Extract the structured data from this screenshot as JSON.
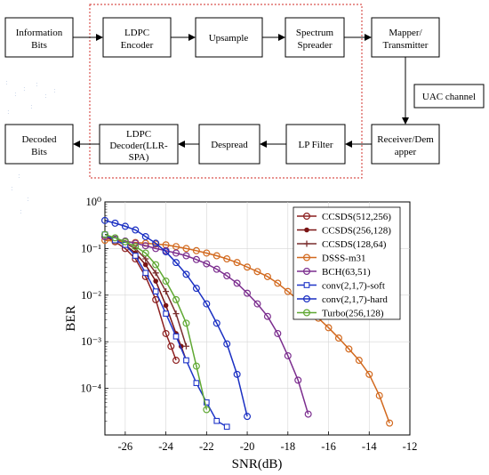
{
  "diagram": {
    "blocks": {
      "info": [
        "Information",
        "Bits"
      ],
      "ldpc_enc": [
        "LDPC",
        "Encoder"
      ],
      "upsample": [
        "Upsample"
      ],
      "spreader": [
        "Spectrum",
        "Spreader"
      ],
      "mapper": [
        "Mapper/",
        "Transmitter"
      ],
      "channel": [
        "UAC channel"
      ],
      "receiver": [
        "Receiver/Dem",
        "apper"
      ],
      "lpfilter": [
        "LP Filter"
      ],
      "despread": [
        "Despread"
      ],
      "ldpc_dec": [
        "LDPC",
        "Decoder(LLR-",
        "SPA)"
      ],
      "decoded": [
        "Decoded",
        "Bits"
      ]
    }
  },
  "chart_data": {
    "type": "line",
    "xlabel": "SNR(dB)",
    "ylabel": "BER",
    "xlim": [
      -27,
      -12
    ],
    "ylim": [
      1e-05,
      1
    ],
    "y_scale": "log",
    "x_ticks": [
      -26,
      -24,
      -22,
      -20,
      -18,
      -16,
      -14,
      -12
    ],
    "y_ticks": [
      1,
      0.1,
      0.01,
      0.001,
      0.0001
    ],
    "legend_position": "top-right",
    "grid": true,
    "series": [
      {
        "name": "CCSDS(512,256)",
        "color": "#8c1f1f",
        "marker": "circle",
        "x": [
          -27,
          -26.5,
          -26,
          -25.5,
          -25,
          -24.5,
          -24,
          -23.75,
          -23.5
        ],
        "y": [
          0.18,
          0.14,
          0.1,
          0.06,
          0.025,
          0.008,
          0.0015,
          0.0008,
          0.0004
        ]
      },
      {
        "name": "CCSDS(256,128)",
        "color": "#7a1414",
        "marker": "dot",
        "x": [
          -27,
          -26.5,
          -26,
          -25.5,
          -25,
          -24.5,
          -24,
          -23.5,
          -23.25,
          -23
        ],
        "y": [
          0.19,
          0.15,
          0.12,
          0.08,
          0.045,
          0.02,
          0.006,
          0.0015,
          0.0008,
          0.0004
        ]
      },
      {
        "name": "CCSDS(128,64)",
        "color": "#7a2e2e",
        "marker": "plus",
        "x": [
          -27,
          -26.5,
          -26,
          -25.5,
          -25,
          -24.5,
          -24,
          -23.5,
          -23
        ],
        "y": [
          0.2,
          0.16,
          0.13,
          0.1,
          0.06,
          0.03,
          0.012,
          0.004,
          0.0008
        ]
      },
      {
        "name": "DSSS-m31",
        "color": "#d2691e",
        "marker": "circle",
        "x": [
          -27,
          -26.5,
          -26,
          -25.5,
          -25,
          -24.5,
          -24,
          -23.5,
          -23,
          -22.5,
          -22,
          -21.5,
          -21,
          -20.5,
          -20,
          -19.5,
          -19,
          -18.5,
          -18,
          -17.5,
          -17,
          -16.5,
          -16,
          -15.5,
          -15,
          -14.5,
          -14,
          -13.5,
          -13
        ],
        "y": [
          0.15,
          0.145,
          0.14,
          0.135,
          0.13,
          0.125,
          0.12,
          0.11,
          0.1,
          0.09,
          0.08,
          0.07,
          0.06,
          0.05,
          0.04,
          0.032,
          0.025,
          0.018,
          0.012,
          0.008,
          0.005,
          0.0032,
          0.002,
          0.0012,
          0.0007,
          0.0004,
          0.0002,
          7e-05,
          1.8e-05
        ]
      },
      {
        "name": "BCH(63,51)",
        "color": "#7b2d8e",
        "marker": "circle",
        "x": [
          -27,
          -26.5,
          -26,
          -25.5,
          -25,
          -24.5,
          -24,
          -23.5,
          -23,
          -22.5,
          -22,
          -21.5,
          -21,
          -20.5,
          -20,
          -19.5,
          -19,
          -18.5,
          -18,
          -17.5,
          -17
        ],
        "y": [
          0.18,
          0.16,
          0.145,
          0.13,
          0.115,
          0.1,
          0.09,
          0.08,
          0.07,
          0.058,
          0.047,
          0.036,
          0.026,
          0.018,
          0.011,
          0.0065,
          0.0035,
          0.0015,
          0.0005,
          0.00015,
          2.8e-05
        ]
      },
      {
        "name": "conv(2,1,7)-soft",
        "color": "#1f35c8",
        "marker": "square",
        "x": [
          -27,
          -26.5,
          -26,
          -25.5,
          -25,
          -24.5,
          -24,
          -23.5,
          -23,
          -22.5,
          -22,
          -21.5,
          -21
        ],
        "y": [
          0.2,
          0.15,
          0.12,
          0.07,
          0.03,
          0.012,
          0.004,
          0.0013,
          0.0004,
          0.00013,
          5e-05,
          2e-05,
          1.5e-05
        ]
      },
      {
        "name": "conv(2,1,7)-hard",
        "color": "#1a2fc2",
        "marker": "circle",
        "x": [
          -27,
          -26.5,
          -26,
          -25.5,
          -25,
          -24.5,
          -24,
          -23.5,
          -23,
          -22.5,
          -22,
          -21.5,
          -21,
          -20.5,
          -20
        ],
        "y": [
          0.4,
          0.35,
          0.3,
          0.25,
          0.18,
          0.13,
          0.085,
          0.05,
          0.028,
          0.014,
          0.0065,
          0.0025,
          0.0009,
          0.0002,
          2.5e-05
        ]
      },
      {
        "name": "Turbo(256,128)",
        "color": "#5fa832",
        "marker": "circle",
        "x": [
          -27,
          -26.5,
          -26,
          -25.5,
          -25,
          -24.5,
          -24,
          -23.5,
          -23,
          -22.5,
          -22
        ],
        "y": [
          0.2,
          0.17,
          0.14,
          0.11,
          0.08,
          0.045,
          0.02,
          0.008,
          0.0025,
          0.0003,
          3.5e-05
        ]
      }
    ]
  }
}
